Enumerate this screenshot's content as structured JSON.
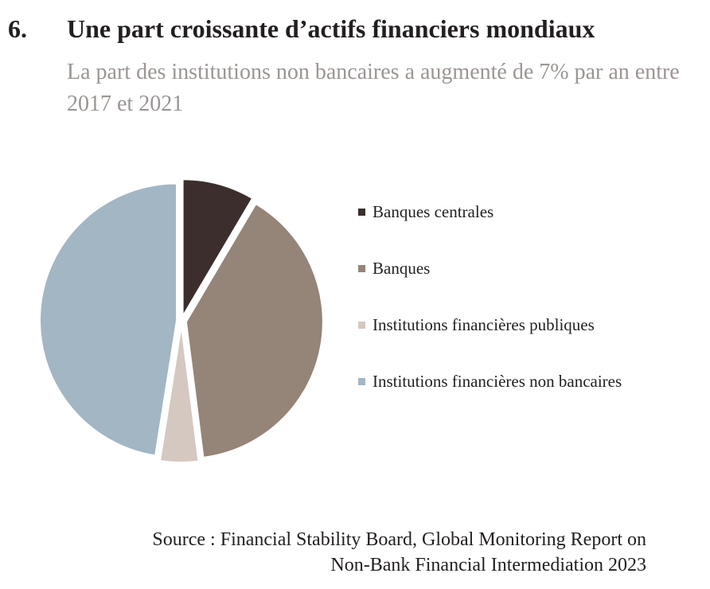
{
  "figure": {
    "number": "6.",
    "title": "Une part croissante d’actifs financiers mondiaux",
    "subtitle": "La part des institutions non bancaires a augmenté de 7% par an entre 2017 et 2021"
  },
  "chart_data": {
    "type": "pie",
    "title": "",
    "categories": [
      "Banques centrales",
      "Banques",
      "Institutions financières publiques",
      "Institutions financières non bancaires"
    ],
    "values": [
      8.5,
      39.5,
      4.5,
      47.5
    ],
    "colors": [
      "#3b2e2c",
      "#958478",
      "#d5c8c1",
      "#a2b6c4"
    ],
    "start_angle_deg": 0,
    "direction": "clockwise",
    "legend_position": "right"
  },
  "source": {
    "line1": "Source : Financial Stability Board, Global Monitoring Report on",
    "line2": "Non-Bank Financial Intermediation 2023"
  }
}
